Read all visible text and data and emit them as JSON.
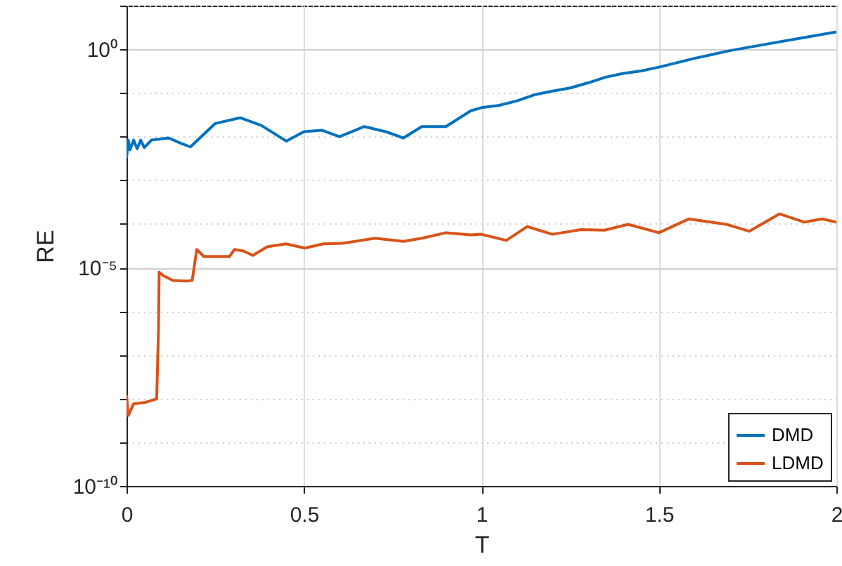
{
  "chart_data": {
    "type": "line",
    "xlabel": "T",
    "ylabel": "RE",
    "log": true,
    "grid": true,
    "legend": "bottom right",
    "xlim": [
      0,
      2
    ],
    "xticks": [
      0,
      0.5,
      1,
      1.5,
      2
    ],
    "ylim": [
      1e-10,
      10
    ],
    "yticks": [
      {
        "value": 1e-10,
        "label": "10⁻¹⁰"
      },
      {
        "value": 1e-09,
        "label": null
      },
      {
        "value": 1e-08,
        "label": null
      },
      {
        "value": 1e-07,
        "label": null
      },
      {
        "value": 1e-06,
        "label": null
      },
      {
        "value": 1e-05,
        "label": "10⁻⁵"
      },
      {
        "value": 0.0001,
        "label": null
      },
      {
        "value": 0.001,
        "label": null
      },
      {
        "value": 0.01,
        "label": null
      },
      {
        "value": 0.1,
        "label": null
      },
      {
        "value": 1,
        "label": "10⁰"
      },
      {
        "value": 10,
        "label": null
      }
    ],
    "series": [
      {
        "name": "DMD",
        "color": "#0072bd",
        "x": [
          0,
          0.005,
          0.01,
          0.02,
          0.03,
          0.04,
          0.05,
          0.07,
          0.119,
          0.15,
          0.18,
          0.25,
          0.32,
          0.38,
          0.45,
          0.5,
          0.55,
          0.6,
          0.67,
          0.73,
          0.78,
          0.832,
          0.9,
          0.97,
          1.0,
          1.05,
          1.1,
          1.15,
          1.2,
          1.25,
          1.3,
          1.35,
          1.4,
          1.45,
          1.5,
          1.6,
          1.7,
          1.8,
          1.9,
          2.0
        ],
        "values": [
          0.0032,
          0.0083,
          0.005,
          0.0083,
          0.0053,
          0.0083,
          0.0056,
          0.0083,
          0.0093,
          0.0072,
          0.0058,
          0.02,
          0.027,
          0.018,
          0.0079,
          0.013,
          0.014,
          0.01,
          0.017,
          0.013,
          0.0093,
          0.017,
          0.017,
          0.039,
          0.046,
          0.052,
          0.066,
          0.091,
          0.11,
          0.13,
          0.17,
          0.23,
          0.28,
          0.32,
          0.39,
          0.62,
          0.93,
          1.3,
          1.8,
          2.5
        ]
      },
      {
        "name": "LDMD",
        "color": "#d95319",
        "x": [
          0,
          0.005,
          0.02,
          0.05,
          0.085,
          0.09,
          0.092,
          0.103,
          0.13,
          0.17,
          0.185,
          0.198,
          0.218,
          0.29,
          0.304,
          0.33,
          0.356,
          0.396,
          0.449,
          0.502,
          0.555,
          0.607,
          0.7,
          0.78,
          0.832,
          0.9,
          0.97,
          1.0,
          1.07,
          1.129,
          1.2,
          1.28,
          1.347,
          1.413,
          1.5,
          1.584,
          1.69,
          1.755,
          1.84,
          1.91,
          1.96,
          2.0
        ],
        "values": [
          1.2e-08,
          4.1e-09,
          7.6e-09,
          8.1e-09,
          9.8e-09,
          3.5e-07,
          7.9e-06,
          6.6e-06,
          5.1e-06,
          4.9e-06,
          5.1e-06,
          2.6e-05,
          1.8e-05,
          1.8e-05,
          2.6e-05,
          2.4e-05,
          1.9e-05,
          3e-05,
          3.5e-05,
          2.8e-05,
          3.5e-05,
          3.6e-05,
          4.7e-05,
          4e-05,
          4.7e-05,
          6.3e-05,
          5.6e-05,
          5.8e-05,
          4.2e-05,
          8.7e-05,
          5.8e-05,
          7.4e-05,
          7.2e-05,
          9.8e-05,
          6.3e-05,
          0.00013,
          9.8e-05,
          6.8e-05,
          0.00017,
          0.00011,
          0.00013,
          0.00011
        ]
      }
    ]
  }
}
